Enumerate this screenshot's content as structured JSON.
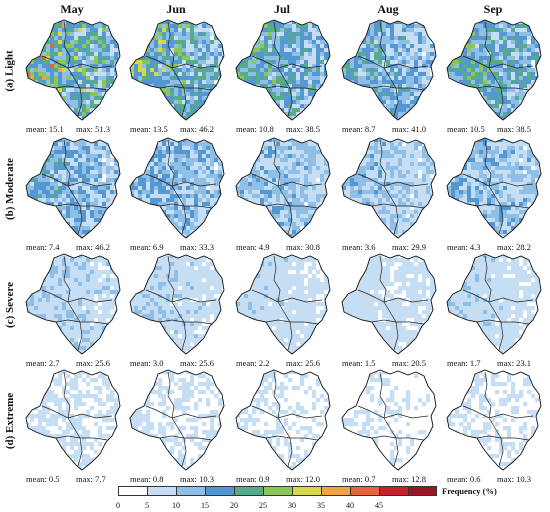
{
  "months": [
    "May",
    "Jun",
    "Jul",
    "Aug",
    "Sep"
  ],
  "rows": [
    {
      "label": "(a) Light",
      "intensity": 0.95,
      "stats": [
        {
          "mean": "mean: 15.1",
          "max": "max: 51.3"
        },
        {
          "mean": "mean: 13.5",
          "max": "max: 46.2"
        },
        {
          "mean": "mean: 10.8",
          "max": "max: 38.5"
        },
        {
          "mean": "mean: 8.7",
          "max": "max: 41.0"
        },
        {
          "mean": "mean: 10.5",
          "max": "max: 38.5"
        }
      ]
    },
    {
      "label": "(b) Moderate",
      "intensity": 0.6,
      "stats": [
        {
          "mean": "mean: 7.4",
          "max": "max: 46.2"
        },
        {
          "mean": "mean: 6.9",
          "max": "max: 33.3"
        },
        {
          "mean": "mean: 4.9",
          "max": "max: 30.8"
        },
        {
          "mean": "mean: 3.6",
          "max": "max: 29.9"
        },
        {
          "mean": "mean: 4.3",
          "max": "max: 28.2"
        }
      ]
    },
    {
      "label": "(c) Severe",
      "intensity": 0.3,
      "stats": [
        {
          "mean": "mean: 2.7",
          "max": "max: 25.6"
        },
        {
          "mean": "mean: 3.0",
          "max": "max: 25.6"
        },
        {
          "mean": "mean: 2.2",
          "max": "max: 25.6"
        },
        {
          "mean": "mean: 1.5",
          "max": "max: 20.5"
        },
        {
          "mean": "mean: 1.7",
          "max": "max: 23.1"
        }
      ]
    },
    {
      "label": "(d) Extreme",
      "intensity": 0.12,
      "stats": [
        {
          "mean": "mean: 0.5",
          "max": "max: 7.7"
        },
        {
          "mean": "mean: 0.8",
          "max": "max: 10.3"
        },
        {
          "mean": "mean: 0.9",
          "max": "max: 12.0"
        },
        {
          "mean": "mean: 0.7",
          "max": "max: 12.8"
        },
        {
          "mean": "mean: 0.6",
          "max": "max: 10.3"
        }
      ]
    }
  ],
  "colorbar": {
    "label": "Frequency (%)",
    "ticks": [
      "0",
      "5",
      "10",
      "15",
      "20",
      "25",
      "30",
      "35",
      "40",
      "45"
    ],
    "colors": [
      "#ffffff",
      "#c6def3",
      "#8fbfe6",
      "#5597d0",
      "#55ab8c",
      "#8cc55a",
      "#d8d64a",
      "#f2a443",
      "#e8623a",
      "#c8202c",
      "#9a1526"
    ]
  }
}
